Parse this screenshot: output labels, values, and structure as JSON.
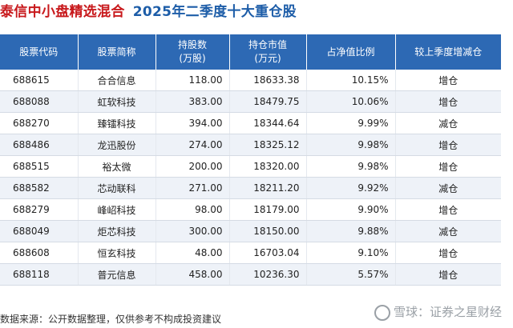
{
  "header": {
    "fund_name": "泰信中小盘精选混合",
    "subtitle": "2025年二季度十大重仓股"
  },
  "columns": {
    "code": "股票代码",
    "name": "股票简称",
    "shares_l1": "持股数",
    "shares_l2": "(万股)",
    "value_l1": "持仓市值",
    "value_l2": "(万元)",
    "ratio": "占净值比例",
    "change": "较上季度增减仓"
  },
  "rows": [
    {
      "code": "688615",
      "name": "合合信息",
      "shares": "118.00",
      "value": "18633.38",
      "ratio": "10.15%",
      "change": "增仓",
      "dir": "inc"
    },
    {
      "code": "688088",
      "name": "虹软科技",
      "shares": "383.00",
      "value": "18479.75",
      "ratio": "10.06%",
      "change": "增仓",
      "dir": "inc"
    },
    {
      "code": "688270",
      "name": "臻镭科技",
      "shares": "394.00",
      "value": "18344.64",
      "ratio": "9.99%",
      "change": "减仓",
      "dir": "dec"
    },
    {
      "code": "688486",
      "name": "龙迅股份",
      "shares": "274.00",
      "value": "18325.12",
      "ratio": "9.98%",
      "change": "增仓",
      "dir": "inc"
    },
    {
      "code": "688515",
      "name": "裕太微",
      "shares": "200.00",
      "value": "18320.00",
      "ratio": "9.98%",
      "change": "增仓",
      "dir": "inc"
    },
    {
      "code": "688582",
      "name": "芯动联科",
      "shares": "271.00",
      "value": "18211.20",
      "ratio": "9.92%",
      "change": "减仓",
      "dir": "dec"
    },
    {
      "code": "688279",
      "name": "峰岹科技",
      "shares": "98.00",
      "value": "18179.00",
      "ratio": "9.90%",
      "change": "增仓",
      "dir": "inc"
    },
    {
      "code": "688049",
      "name": "炬芯科技",
      "shares": "300.00",
      "value": "18150.00",
      "ratio": "9.88%",
      "change": "减仓",
      "dir": "dec"
    },
    {
      "code": "688608",
      "name": "恒玄科技",
      "shares": "48.00",
      "value": "16703.04",
      "ratio": "9.10%",
      "change": "增仓",
      "dir": "inc"
    },
    {
      "code": "688118",
      "name": "普元信息",
      "shares": "458.00",
      "value": "10236.30",
      "ratio": "5.57%",
      "change": "增仓",
      "dir": "inc"
    }
  ],
  "footer": {
    "source": "数据来源：公开数据整理，仅供参考不构成投资建议"
  },
  "brand": {
    "text": "雪球：证券之星财经"
  },
  "colors": {
    "header_bg": "#2d69b4",
    "title_red": "#c8191c",
    "title_blue": "#1d5da8",
    "increase": "#d0021b",
    "decrease": "#1a8f3c"
  },
  "icons": {
    "brand": "snowball-logo-icon"
  }
}
